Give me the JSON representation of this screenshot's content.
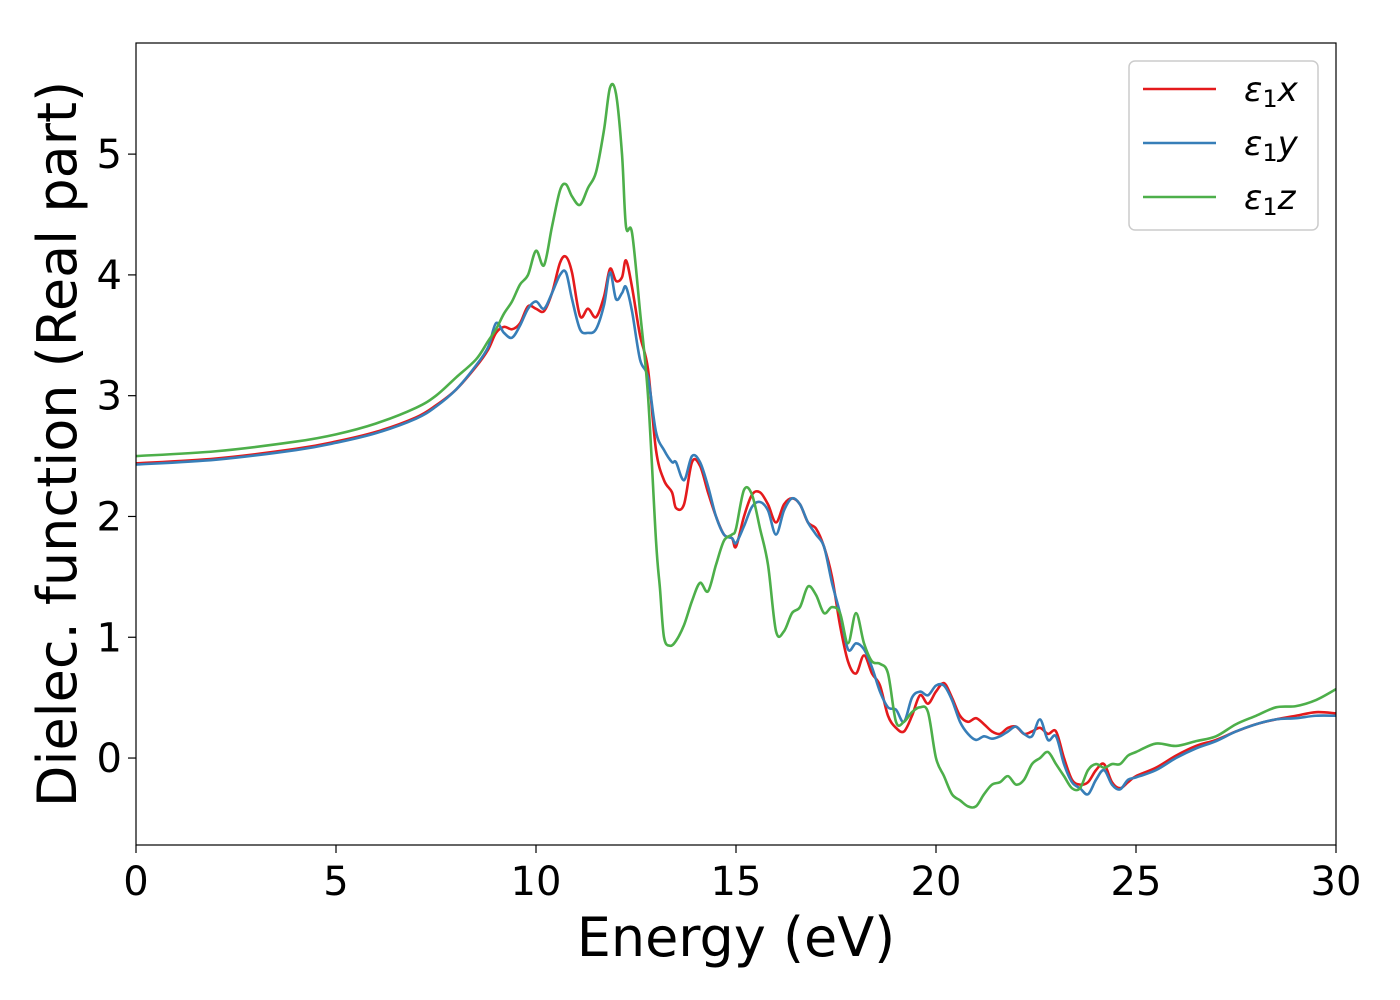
{
  "chart_data": {
    "type": "line",
    "xlabel": "Energy (eV)",
    "ylabel": "Dielec. function (Real part)",
    "xlim": [
      0,
      30
    ],
    "ylim": [
      -0.72,
      5.92
    ],
    "xticks": [
      0,
      5,
      10,
      15,
      20,
      25,
      30
    ],
    "yticks": [
      0,
      1,
      2,
      3,
      4,
      5
    ],
    "grid": false,
    "legend_position": "top-right",
    "series": [
      {
        "name": "ε1x",
        "legend": {
          "base": "ε",
          "sub": "1",
          "var": "x"
        },
        "color": "#e41a1c",
        "points": [
          [
            0,
            2.44
          ],
          [
            2,
            2.48
          ],
          [
            4,
            2.56
          ],
          [
            5,
            2.62
          ],
          [
            6,
            2.7
          ],
          [
            7,
            2.82
          ],
          [
            7.5,
            2.92
          ],
          [
            8,
            3.05
          ],
          [
            8.5,
            3.24
          ],
          [
            8.8,
            3.38
          ],
          [
            9,
            3.52
          ],
          [
            9.2,
            3.57
          ],
          [
            9.4,
            3.55
          ],
          [
            9.6,
            3.6
          ],
          [
            9.8,
            3.74
          ],
          [
            10,
            3.72
          ],
          [
            10.2,
            3.7
          ],
          [
            10.4,
            3.85
          ],
          [
            10.6,
            4.1
          ],
          [
            10.75,
            4.15
          ],
          [
            10.9,
            4.02
          ],
          [
            11.1,
            3.66
          ],
          [
            11.3,
            3.72
          ],
          [
            11.5,
            3.65
          ],
          [
            11.7,
            3.82
          ],
          [
            11.85,
            4.05
          ],
          [
            12,
            3.95
          ],
          [
            12.15,
            3.98
          ],
          [
            12.25,
            4.12
          ],
          [
            12.4,
            3.9
          ],
          [
            12.6,
            3.5
          ],
          [
            12.8,
            3.22
          ],
          [
            13,
            2.55
          ],
          [
            13.2,
            2.3
          ],
          [
            13.4,
            2.2
          ],
          [
            13.5,
            2.07
          ],
          [
            13.7,
            2.1
          ],
          [
            13.9,
            2.45
          ],
          [
            14.1,
            2.42
          ],
          [
            14.3,
            2.2
          ],
          [
            14.5,
            2.0
          ],
          [
            14.7,
            1.85
          ],
          [
            14.9,
            1.82
          ],
          [
            15,
            1.75
          ],
          [
            15.2,
            2.0
          ],
          [
            15.4,
            2.18
          ],
          [
            15.6,
            2.2
          ],
          [
            15.8,
            2.1
          ],
          [
            16,
            1.95
          ],
          [
            16.2,
            2.1
          ],
          [
            16.4,
            2.15
          ],
          [
            16.6,
            2.1
          ],
          [
            16.8,
            1.95
          ],
          [
            17,
            1.9
          ],
          [
            17.2,
            1.75
          ],
          [
            17.4,
            1.5
          ],
          [
            17.6,
            1.1
          ],
          [
            17.8,
            0.8
          ],
          [
            18,
            0.7
          ],
          [
            18.2,
            0.85
          ],
          [
            18.4,
            0.7
          ],
          [
            18.6,
            0.6
          ],
          [
            18.8,
            0.35
          ],
          [
            19,
            0.25
          ],
          [
            19.2,
            0.22
          ],
          [
            19.4,
            0.35
          ],
          [
            19.6,
            0.52
          ],
          [
            19.8,
            0.45
          ],
          [
            20,
            0.55
          ],
          [
            20.2,
            0.62
          ],
          [
            20.4,
            0.5
          ],
          [
            20.6,
            0.35
          ],
          [
            20.8,
            0.3
          ],
          [
            21,
            0.33
          ],
          [
            21.2,
            0.28
          ],
          [
            21.4,
            0.22
          ],
          [
            21.6,
            0.2
          ],
          [
            21.8,
            0.25
          ],
          [
            22,
            0.26
          ],
          [
            22.2,
            0.2
          ],
          [
            22.4,
            0.22
          ],
          [
            22.6,
            0.25
          ],
          [
            22.8,
            0.2
          ],
          [
            23,
            0.22
          ],
          [
            23.2,
            0.0
          ],
          [
            23.4,
            -0.18
          ],
          [
            23.6,
            -0.22
          ],
          [
            23.8,
            -0.2
          ],
          [
            24,
            -0.1
          ],
          [
            24.2,
            -0.05
          ],
          [
            24.4,
            -0.2
          ],
          [
            24.6,
            -0.25
          ],
          [
            24.8,
            -0.2
          ],
          [
            25,
            -0.15
          ],
          [
            25.5,
            -0.08
          ],
          [
            26,
            0.02
          ],
          [
            26.5,
            0.1
          ],
          [
            27,
            0.15
          ],
          [
            27.5,
            0.22
          ],
          [
            28,
            0.28
          ],
          [
            28.5,
            0.32
          ],
          [
            29,
            0.35
          ],
          [
            29.5,
            0.38
          ],
          [
            30,
            0.37
          ]
        ]
      },
      {
        "name": "ε1y",
        "legend": {
          "base": "ε",
          "sub": "1",
          "var": "y"
        },
        "color": "#377eb8",
        "points": [
          [
            0,
            2.43
          ],
          [
            2,
            2.47
          ],
          [
            4,
            2.55
          ],
          [
            5,
            2.61
          ],
          [
            6,
            2.69
          ],
          [
            7,
            2.81
          ],
          [
            7.5,
            2.91
          ],
          [
            8,
            3.05
          ],
          [
            8.5,
            3.25
          ],
          [
            8.8,
            3.4
          ],
          [
            9,
            3.6
          ],
          [
            9.2,
            3.52
          ],
          [
            9.4,
            3.48
          ],
          [
            9.6,
            3.58
          ],
          [
            9.8,
            3.72
          ],
          [
            10,
            3.78
          ],
          [
            10.2,
            3.72
          ],
          [
            10.4,
            3.85
          ],
          [
            10.6,
            4.0
          ],
          [
            10.75,
            4.02
          ],
          [
            10.9,
            3.8
          ],
          [
            11.1,
            3.55
          ],
          [
            11.3,
            3.52
          ],
          [
            11.5,
            3.55
          ],
          [
            11.7,
            3.75
          ],
          [
            11.85,
            4.02
          ],
          [
            12,
            3.8
          ],
          [
            12.15,
            3.85
          ],
          [
            12.25,
            3.9
          ],
          [
            12.4,
            3.7
          ],
          [
            12.6,
            3.3
          ],
          [
            12.8,
            3.15
          ],
          [
            13,
            2.7
          ],
          [
            13.2,
            2.55
          ],
          [
            13.4,
            2.45
          ],
          [
            13.5,
            2.45
          ],
          [
            13.7,
            2.3
          ],
          [
            13.9,
            2.5
          ],
          [
            14.1,
            2.45
          ],
          [
            14.3,
            2.25
          ],
          [
            14.5,
            2.0
          ],
          [
            14.7,
            1.85
          ],
          [
            14.9,
            1.82
          ],
          [
            15,
            1.78
          ],
          [
            15.2,
            1.92
          ],
          [
            15.4,
            2.08
          ],
          [
            15.6,
            2.12
          ],
          [
            15.8,
            2.05
          ],
          [
            16,
            1.85
          ],
          [
            16.2,
            2.05
          ],
          [
            16.4,
            2.15
          ],
          [
            16.6,
            2.1
          ],
          [
            16.8,
            1.95
          ],
          [
            17,
            1.85
          ],
          [
            17.2,
            1.75
          ],
          [
            17.4,
            1.45
          ],
          [
            17.6,
            1.2
          ],
          [
            17.8,
            0.9
          ],
          [
            18,
            0.95
          ],
          [
            18.2,
            0.9
          ],
          [
            18.4,
            0.75
          ],
          [
            18.6,
            0.55
          ],
          [
            18.8,
            0.42
          ],
          [
            19,
            0.4
          ],
          [
            19.2,
            0.3
          ],
          [
            19.4,
            0.5
          ],
          [
            19.6,
            0.55
          ],
          [
            19.8,
            0.52
          ],
          [
            20,
            0.6
          ],
          [
            20.2,
            0.6
          ],
          [
            20.4,
            0.48
          ],
          [
            20.6,
            0.3
          ],
          [
            20.8,
            0.2
          ],
          [
            21,
            0.15
          ],
          [
            21.2,
            0.18
          ],
          [
            21.4,
            0.16
          ],
          [
            21.6,
            0.18
          ],
          [
            21.8,
            0.22
          ],
          [
            22,
            0.26
          ],
          [
            22.2,
            0.2
          ],
          [
            22.4,
            0.18
          ],
          [
            22.6,
            0.32
          ],
          [
            22.8,
            0.15
          ],
          [
            23,
            0.18
          ],
          [
            23.2,
            -0.05
          ],
          [
            23.4,
            -0.2
          ],
          [
            23.6,
            -0.25
          ],
          [
            23.8,
            -0.3
          ],
          [
            24,
            -0.18
          ],
          [
            24.2,
            -0.1
          ],
          [
            24.4,
            -0.22
          ],
          [
            24.6,
            -0.26
          ],
          [
            24.8,
            -0.18
          ],
          [
            25,
            -0.16
          ],
          [
            25.5,
            -0.1
          ],
          [
            26,
            0.0
          ],
          [
            26.5,
            0.08
          ],
          [
            27,
            0.14
          ],
          [
            27.5,
            0.22
          ],
          [
            28,
            0.28
          ],
          [
            28.5,
            0.32
          ],
          [
            29,
            0.33
          ],
          [
            29.5,
            0.35
          ],
          [
            30,
            0.35
          ]
        ]
      },
      {
        "name": "ε1z",
        "legend": {
          "base": "ε",
          "sub": "1",
          "var": "z"
        },
        "color": "#4daf4a",
        "points": [
          [
            0,
            2.5
          ],
          [
            2,
            2.54
          ],
          [
            4,
            2.62
          ],
          [
            5,
            2.68
          ],
          [
            6,
            2.77
          ],
          [
            7,
            2.9
          ],
          [
            7.5,
            3.0
          ],
          [
            8,
            3.15
          ],
          [
            8.5,
            3.3
          ],
          [
            8.8,
            3.45
          ],
          [
            9,
            3.55
          ],
          [
            9.2,
            3.68
          ],
          [
            9.4,
            3.78
          ],
          [
            9.6,
            3.92
          ],
          [
            9.8,
            4.0
          ],
          [
            10,
            4.2
          ],
          [
            10.2,
            4.08
          ],
          [
            10.4,
            4.4
          ],
          [
            10.6,
            4.7
          ],
          [
            10.75,
            4.75
          ],
          [
            10.9,
            4.65
          ],
          [
            11.1,
            4.58
          ],
          [
            11.3,
            4.72
          ],
          [
            11.5,
            4.85
          ],
          [
            11.7,
            5.2
          ],
          [
            11.85,
            5.55
          ],
          [
            12,
            5.5
          ],
          [
            12.15,
            5.0
          ],
          [
            12.25,
            4.4
          ],
          [
            12.4,
            4.35
          ],
          [
            12.6,
            3.7
          ],
          [
            12.8,
            3.0
          ],
          [
            13,
            1.8
          ],
          [
            13.1,
            1.4
          ],
          [
            13.2,
            1.0
          ],
          [
            13.35,
            0.93
          ],
          [
            13.5,
            0.97
          ],
          [
            13.7,
            1.1
          ],
          [
            13.9,
            1.3
          ],
          [
            14.1,
            1.45
          ],
          [
            14.3,
            1.38
          ],
          [
            14.5,
            1.6
          ],
          [
            14.7,
            1.8
          ],
          [
            14.9,
            1.85
          ],
          [
            15,
            1.9
          ],
          [
            15.2,
            2.22
          ],
          [
            15.4,
            2.18
          ],
          [
            15.6,
            1.9
          ],
          [
            15.8,
            1.6
          ],
          [
            16,
            1.05
          ],
          [
            16.2,
            1.05
          ],
          [
            16.4,
            1.2
          ],
          [
            16.6,
            1.25
          ],
          [
            16.8,
            1.42
          ],
          [
            17,
            1.35
          ],
          [
            17.2,
            1.2
          ],
          [
            17.4,
            1.25
          ],
          [
            17.6,
            1.2
          ],
          [
            17.8,
            0.95
          ],
          [
            18,
            1.2
          ],
          [
            18.2,
            0.95
          ],
          [
            18.4,
            0.8
          ],
          [
            18.6,
            0.78
          ],
          [
            18.8,
            0.7
          ],
          [
            19,
            0.3
          ],
          [
            19.2,
            0.3
          ],
          [
            19.4,
            0.38
          ],
          [
            19.6,
            0.42
          ],
          [
            19.8,
            0.38
          ],
          [
            20,
            0.0
          ],
          [
            20.2,
            -0.15
          ],
          [
            20.4,
            -0.3
          ],
          [
            20.6,
            -0.35
          ],
          [
            20.8,
            -0.4
          ],
          [
            21,
            -0.4
          ],
          [
            21.2,
            -0.3
          ],
          [
            21.4,
            -0.22
          ],
          [
            21.6,
            -0.2
          ],
          [
            21.8,
            -0.15
          ],
          [
            22,
            -0.22
          ],
          [
            22.2,
            -0.18
          ],
          [
            22.4,
            -0.05
          ],
          [
            22.6,
            0.0
          ],
          [
            22.8,
            0.05
          ],
          [
            23,
            -0.05
          ],
          [
            23.2,
            -0.15
          ],
          [
            23.4,
            -0.25
          ],
          [
            23.6,
            -0.25
          ],
          [
            23.8,
            -0.1
          ],
          [
            24,
            -0.05
          ],
          [
            24.2,
            -0.08
          ],
          [
            24.4,
            -0.05
          ],
          [
            24.6,
            -0.05
          ],
          [
            24.8,
            0.02
          ],
          [
            25,
            0.05
          ],
          [
            25.5,
            0.12
          ],
          [
            26,
            0.1
          ],
          [
            26.5,
            0.14
          ],
          [
            27,
            0.18
          ],
          [
            27.5,
            0.28
          ],
          [
            28,
            0.35
          ],
          [
            28.5,
            0.42
          ],
          [
            29,
            0.43
          ],
          [
            29.5,
            0.48
          ],
          [
            30,
            0.57
          ]
        ]
      }
    ]
  }
}
